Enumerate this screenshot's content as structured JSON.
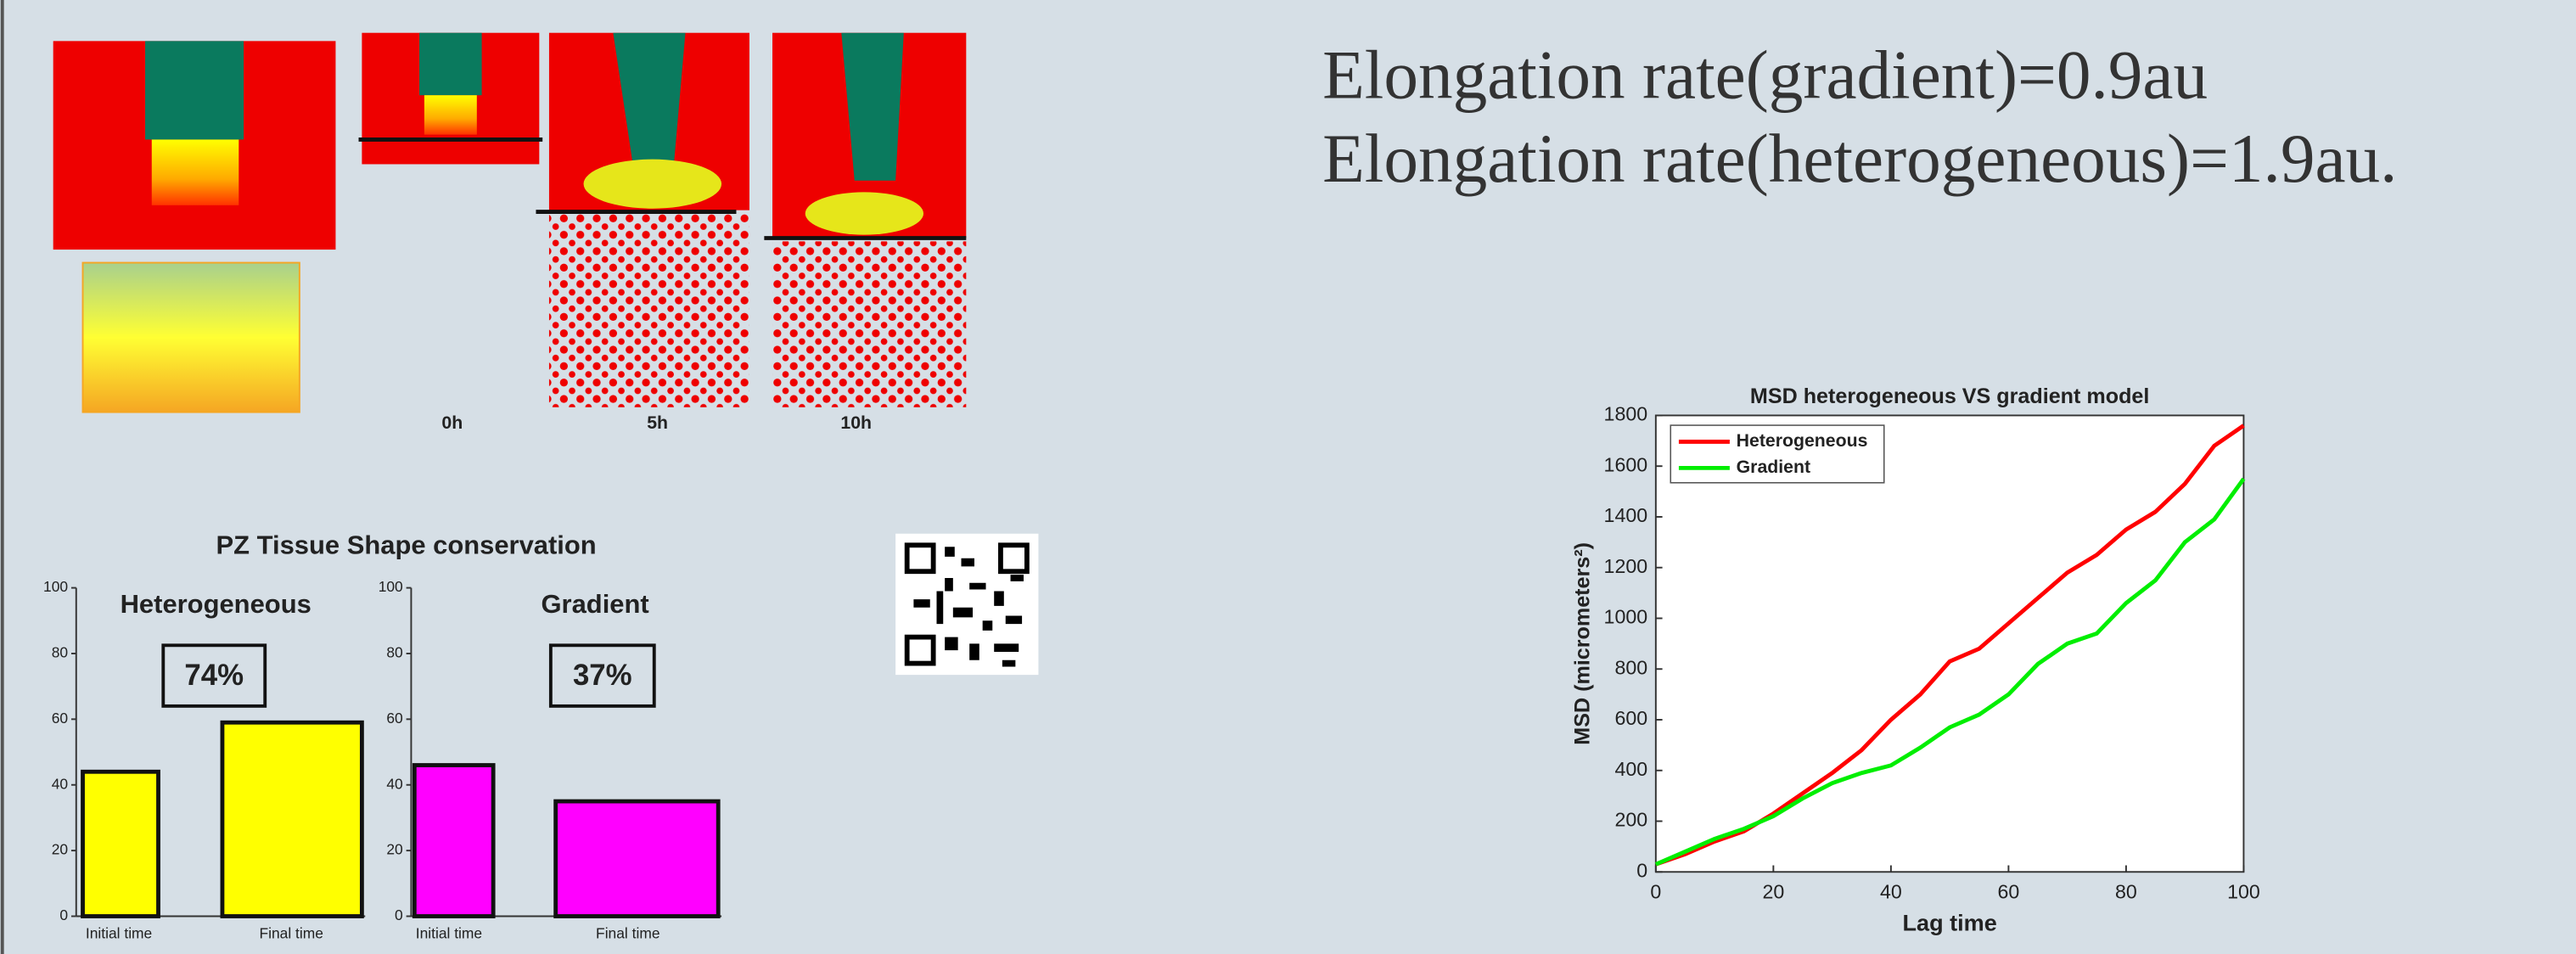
{
  "headings": [
    "Elongation rate(gradient)=0.9au",
    "Elongation rate(heterogeneous)=1.9au."
  ],
  "time_labels": [
    "0h",
    "5h",
    "10h"
  ],
  "figure_title": "PZ Tissue Shape conservation",
  "chart_data": [
    {
      "type": "bar",
      "title": "Heterogeneous",
      "annotation": "74%",
      "categories": [
        "Initial time",
        "Final time"
      ],
      "values": [
        44,
        59
      ],
      "color": "#ffff00",
      "ylim": [
        0,
        100
      ],
      "yticks": [
        0,
        20,
        40,
        60,
        80,
        100
      ]
    },
    {
      "type": "bar",
      "title": "Gradient",
      "annotation": "37%",
      "categories": [
        "Initial time",
        "Final time"
      ],
      "values": [
        46,
        35
      ],
      "color": "#ff00ff",
      "ylim": [
        0,
        100
      ],
      "yticks": [
        0,
        20,
        40,
        60,
        80,
        100
      ]
    },
    {
      "type": "line",
      "title": "MSD heterogeneous VS gradient model",
      "x_label": "Lag time",
      "y_label": "MSD (micrometers²)",
      "x": [
        0,
        5,
        10,
        15,
        20,
        25,
        30,
        35,
        40,
        45,
        50,
        55,
        60,
        65,
        70,
        75,
        80,
        85,
        90,
        95,
        100
      ],
      "series": [
        {
          "name": "Heterogeneous",
          "color": "#ff0000",
          "values": [
            30,
            70,
            120,
            160,
            230,
            310,
            390,
            480,
            600,
            700,
            830,
            880,
            980,
            1080,
            1180,
            1250,
            1350,
            1420,
            1530,
            1680,
            1760
          ]
        },
        {
          "name": "Gradient",
          "color": "#00ee00",
          "values": [
            30,
            80,
            130,
            170,
            220,
            290,
            350,
            390,
            420,
            490,
            570,
            620,
            700,
            820,
            900,
            940,
            1060,
            1150,
            1300,
            1390,
            1550
          ]
        }
      ],
      "xlim": [
        0,
        100
      ],
      "xticks": [
        0,
        20,
        40,
        60,
        80,
        100
      ],
      "ylim": [
        0,
        1800
      ],
      "yticks": [
        0,
        200,
        400,
        600,
        800,
        1000,
        1200,
        1400,
        1600,
        1800
      ],
      "legend": "top-left"
    }
  ]
}
